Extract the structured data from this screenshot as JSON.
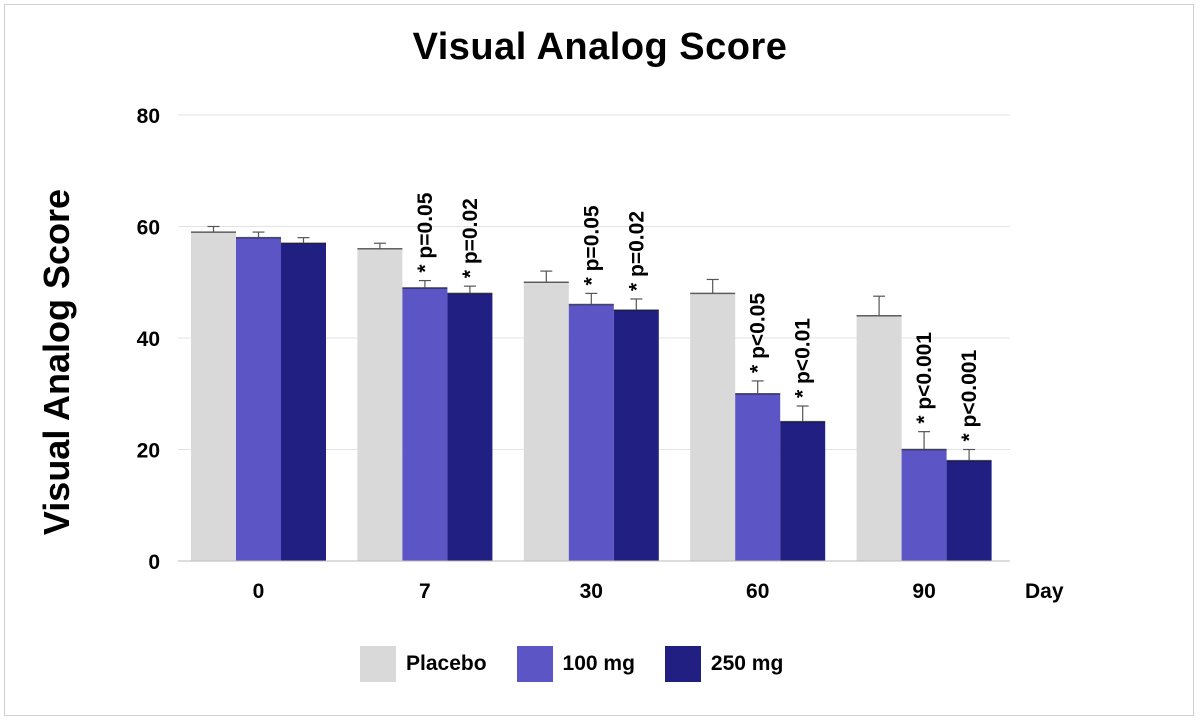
{
  "chart_data": {
    "type": "bar",
    "title": "Visual Analog Score",
    "ylabel": "Visual Analog Score",
    "xlabel": "Day",
    "categories": [
      "0",
      "7",
      "30",
      "60",
      "90"
    ],
    "ylim": [
      0,
      80
    ],
    "yticks": [
      0,
      20,
      40,
      60,
      80
    ],
    "grid": true,
    "legend_position": "bottom",
    "series": [
      {
        "name": "Placebo",
        "color": "#d9d9d9",
        "values": [
          59,
          56,
          50,
          48,
          44
        ],
        "errors": [
          1,
          1,
          2,
          2.5,
          3.5
        ],
        "annotations": [
          "",
          "",
          "",
          "",
          ""
        ]
      },
      {
        "name": "100 mg",
        "color": "#5b55c6",
        "values": [
          58,
          49,
          46,
          30,
          20
        ],
        "errors": [
          1,
          1.3,
          2,
          2.3,
          3.2
        ],
        "annotations": [
          "",
          "* p=0.05",
          "* p=0.05",
          "* p<0.05",
          "* p<0.001"
        ]
      },
      {
        "name": "250 mg",
        "color": "#221f82",
        "values": [
          57,
          48,
          45,
          25,
          18
        ],
        "errors": [
          1,
          1.3,
          2,
          2.8,
          2
        ],
        "annotations": [
          "",
          "* p=0.02",
          "* p=0.02",
          "* p<0.01",
          "* p<0.001"
        ]
      }
    ]
  }
}
